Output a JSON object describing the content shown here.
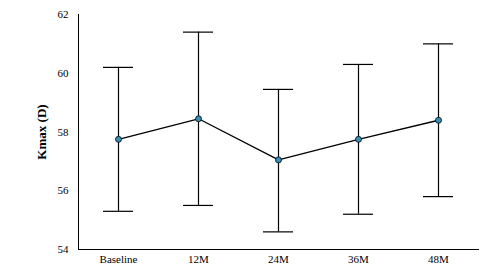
{
  "chart_data": {
    "type": "errorbar_line",
    "y_label": "Kmax (D)",
    "categories": [
      "Baseline",
      "12M",
      "24M",
      "36M",
      "48M"
    ],
    "values": [
      57.75,
      58.45,
      57.05,
      57.75,
      58.4
    ],
    "error_lower": [
      55.3,
      55.5,
      54.6,
      55.2,
      55.8
    ],
    "error_upper": [
      60.2,
      61.4,
      59.45,
      60.3,
      61.0
    ],
    "color": "#3a8fb7",
    "marker": "circle",
    "ylim": [
      54,
      62
    ],
    "yticks": [
      54,
      56,
      58,
      60,
      62
    ],
    "grid": false
  }
}
